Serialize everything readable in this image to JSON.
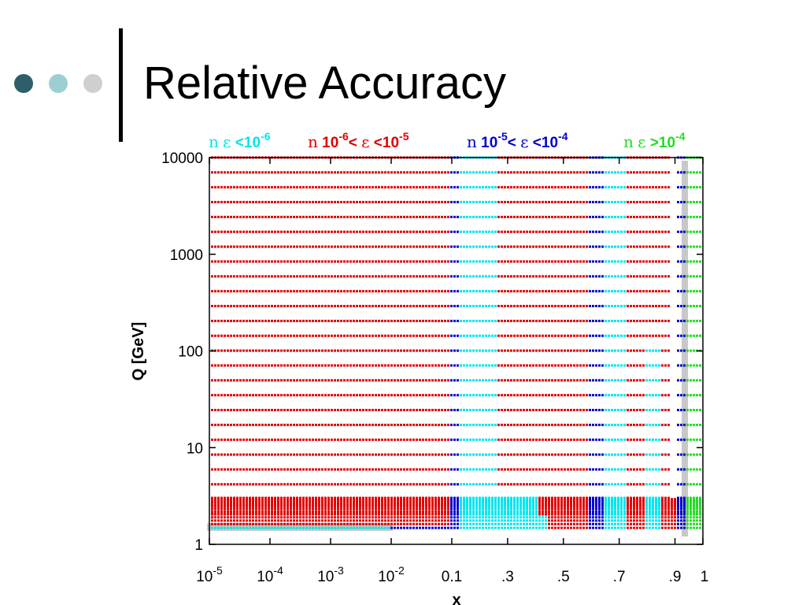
{
  "slide": {
    "title": "Relative Accuracy",
    "decor_colors": [
      "#2e5e6a",
      "#9ccfd4",
      "#cfcfcf"
    ]
  },
  "chart_data": {
    "type": "scatter",
    "title": "",
    "xlabel": "x",
    "ylabel": "Q [GeV]",
    "xlim": [
      1e-05,
      1
    ],
    "ylim": [
      1,
      10000
    ],
    "yscale": "log",
    "x_tick_labels": [
      {
        "base": "10",
        "exp": "-5"
      },
      {
        "base": "10",
        "exp": "-4"
      },
      {
        "base": "10",
        "exp": "-3"
      },
      {
        "base": "10",
        "exp": "-2"
      },
      {
        "base": "0.1",
        "exp": ""
      },
      {
        "base": ".3",
        "exp": ""
      },
      {
        "base": ".5",
        "exp": ""
      },
      {
        "base": ".7",
        "exp": ""
      },
      {
        "base": ".9",
        "exp": ""
      },
      {
        "base": "1",
        "exp": ""
      }
    ],
    "y_tick_labels": [
      "10000",
      "1000",
      "100",
      "10",
      "1"
    ],
    "legend": [
      {
        "sym": "n",
        "eps": "ε",
        "pre": "",
        "post": " <10",
        "exp": "-6",
        "color": "#00e5ee"
      },
      {
        "sym": "n",
        "eps": "ε",
        "pre": " 10",
        "pre_exp": "-6",
        "mid": "< ",
        "post": " <10",
        "exp": "-5",
        "color": "#e00000"
      },
      {
        "sym": "n",
        "eps": "ε",
        "pre": " 10",
        "pre_exp": "-5",
        "mid": "< ",
        "post": " <10",
        "exp": "-4",
        "color": "#0000cc"
      },
      {
        "sym": "n",
        "eps": "ε",
        "pre": "",
        "post": " >10",
        "exp": "-4",
        "color": "#22dd22"
      }
    ],
    "series": [
      {
        "label_index": 0,
        "color": "#00e5ee",
        "regions": [
          {
            "x": [
              1e-05,
              0.0095
            ],
            "q": [
              1.45,
              1.6
            ]
          },
          {
            "x": [
              0.12,
              0.26
            ],
            "q": [
              1.45,
              10000
            ]
          },
          {
            "x": [
              0.26,
              0.41
            ],
            "q": [
              1.45,
              3.2
            ]
          },
          {
            "x": [
              0.41,
              0.44
            ],
            "q": [
              1.45,
              2.0
            ]
          },
          {
            "x": [
              0.64,
              0.72
            ],
            "q": [
              1.45,
              10000
            ]
          },
          {
            "x": [
              0.79,
              0.84
            ],
            "q": [
              1.45,
              120
            ]
          }
        ]
      },
      {
        "label_index": 1,
        "color": "#e00000",
        "regions": [
          {
            "x": [
              1e-05,
              0.085
            ],
            "q": [
              1.6,
              10000
            ]
          },
          {
            "x": [
              0.26,
              0.585
            ],
            "q": [
              1.45,
              10000
            ]
          },
          {
            "x": [
              0.72,
              0.88
            ],
            "q": [
              1.45,
              10000
            ]
          },
          {
            "x": [
              0.88,
              0.9
            ],
            "q": [
              1.45,
              3.0
            ]
          }
        ]
      },
      {
        "label_index": 2,
        "color": "#0000cc",
        "regions": [
          {
            "x": [
              0.0095,
              0.085
            ],
            "q": [
              1.45,
              1.6
            ]
          },
          {
            "x": [
              0.085,
              0.12
            ],
            "q": [
              1.45,
              10000
            ]
          },
          {
            "x": [
              0.585,
              0.64
            ],
            "q": [
              1.45,
              10000
            ]
          },
          {
            "x": [
              0.9,
              0.93
            ],
            "q": [
              1.45,
              10000
            ]
          }
        ]
      },
      {
        "label_index": 3,
        "color": "#22dd22",
        "regions": [
          {
            "x": [
              0.93,
              1.0
            ],
            "q": [
              1.45,
              10000
            ]
          }
        ]
      }
    ],
    "colors": {
      "axis": "#000000",
      "not_computed": "#c8c8c8"
    }
  }
}
